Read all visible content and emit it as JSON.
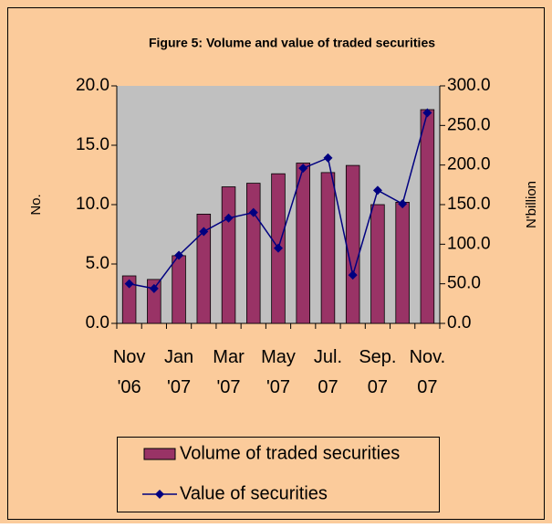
{
  "chart_data": {
    "type": "bar-line",
    "title": "Figure 5: Volume and value of  traded securities",
    "y_label": "No.",
    "y2_label": "N'billion",
    "categories": [
      "Nov '06",
      null,
      "Jan '07",
      null,
      "Mar '07",
      null,
      "May '07",
      null,
      "Jul. 07",
      null,
      "Sep. 07",
      null,
      "Nov. 07"
    ],
    "series": [
      {
        "name": "Volume of traded securities",
        "type": "bar",
        "color": "#993366",
        "values": [
          4.0,
          3.7,
          5.7,
          9.2,
          11.5,
          11.8,
          12.6,
          13.5,
          12.7,
          13.3,
          10.0,
          10.2,
          18.0
        ]
      },
      {
        "name": "Value of securities",
        "type": "line",
        "axis": "y2",
        "color": "#000080",
        "values": [
          50,
          44,
          86,
          116,
          133,
          140,
          95,
          196,
          209,
          61,
          168,
          151,
          266
        ]
      }
    ],
    "ylim": [
      0,
      20
    ],
    "yticks": [
      {
        "value": 0,
        "label": "0.0"
      },
      {
        "value": 5,
        "label": "5.0"
      },
      {
        "value": 10,
        "label": "10.0"
      },
      {
        "value": 15,
        "label": "15.0"
      },
      {
        "value": 20,
        "label": "20.0"
      }
    ],
    "y2lim": [
      0,
      300
    ],
    "y2ticks": [
      {
        "value": 0,
        "label": "0.0"
      },
      {
        "value": 50,
        "label": "50.0"
      },
      {
        "value": 100,
        "label": "100.0"
      },
      {
        "value": 150,
        "label": "150.0"
      },
      {
        "value": 200,
        "label": "200.0"
      },
      {
        "value": 250,
        "label": "250.0"
      },
      {
        "value": 300,
        "label": "300.0"
      }
    ]
  }
}
